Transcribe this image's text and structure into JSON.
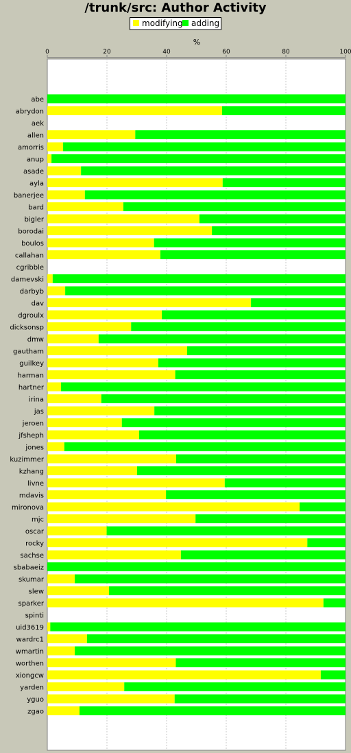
{
  "title": "/trunk/src: Author Activity",
  "legend": [
    {
      "label": "modifying",
      "color": "#ffff00"
    },
    {
      "label": "adding",
      "color": "#00ff00"
    }
  ],
  "chart_data": {
    "type": "bar",
    "orientation": "horizontal",
    "stacked": true,
    "title": "/trunk/src: Author Activity",
    "xlabel": "%",
    "axis_position": "top",
    "xlim": [
      0,
      100
    ],
    "xticks": [
      "0",
      "20",
      "40",
      "60",
      "80",
      "100"
    ],
    "grid": true,
    "legend_position": "top",
    "categories": [
      "abe",
      "abrydon",
      "aek",
      "allen",
      "amorris",
      "anup",
      "asade",
      "ayla",
      "banerjee",
      "bard",
      "bigler",
      "borodai",
      "boulos",
      "callahan",
      "cgribble",
      "damevski",
      "darbyb",
      "dav",
      "dgroulx",
      "dicksonsp",
      "dmw",
      "gautham",
      "guilkey",
      "harman",
      "hartner",
      "irina",
      "jas",
      "jeroen",
      "jfsheph",
      "jones",
      "kuzimmer",
      "kzhang",
      "livne",
      "mdavis",
      "mironova",
      "mjc",
      "oscar",
      "rocky",
      "sachse",
      "sbabaeiz",
      "skumar",
      "slew",
      "sparker",
      "spinti",
      "uid3619",
      "wardrc1",
      "wmartin",
      "worthen",
      "xiongcw",
      "yarden",
      "yguo",
      "zgao"
    ],
    "series": [
      {
        "name": "modifying",
        "color": "#ffff00",
        "values": [
          0,
          58.6,
          0,
          29.5,
          5.3,
          1.4,
          11.3,
          58.8,
          12.6,
          25.5,
          51.0,
          55.2,
          35.8,
          37.9,
          0,
          1.8,
          6.0,
          68.3,
          38.4,
          28.1,
          17.2,
          46.9,
          37.2,
          42.9,
          4.6,
          18.1,
          35.9,
          25.0,
          30.8,
          5.7,
          43.2,
          30.1,
          59.5,
          39.8,
          84.6,
          49.7,
          19.9,
          87.2,
          44.8,
          0,
          9.2,
          20.7,
          92.6,
          0,
          1.0,
          13.3,
          9.2,
          43.1,
          91.7,
          25.8,
          42.7,
          10.8
        ]
      },
      {
        "name": "adding",
        "color": "#00ff00",
        "values": [
          100,
          41.4,
          0,
          70.5,
          94.7,
          98.6,
          88.7,
          41.2,
          87.4,
          74.5,
          49.0,
          44.8,
          64.2,
          62.1,
          0,
          98.2,
          94.0,
          31.7,
          61.6,
          71.9,
          82.8,
          53.1,
          62.8,
          57.1,
          95.4,
          81.9,
          64.1,
          75.0,
          69.2,
          94.3,
          56.8,
          69.9,
          40.5,
          60.2,
          15.4,
          50.3,
          80.1,
          12.8,
          55.2,
          100,
          90.8,
          79.3,
          7.4,
          0,
          99.0,
          86.7,
          90.8,
          56.9,
          8.3,
          74.2,
          57.3,
          89.2
        ]
      }
    ]
  }
}
